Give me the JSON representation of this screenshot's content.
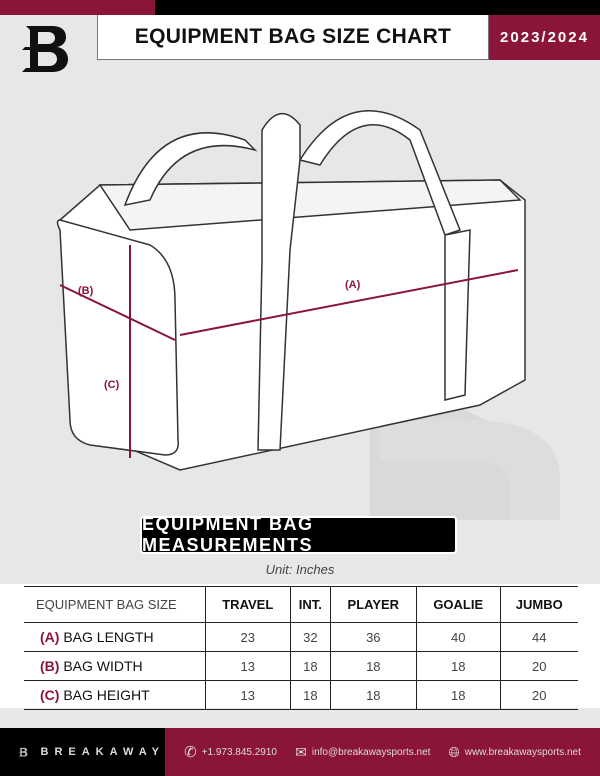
{
  "header": {
    "title": "EQUIPMENT BAG SIZE CHART",
    "season": "2023/2024"
  },
  "diagram": {
    "labels": {
      "a": "(A)",
      "b": "(B)",
      "c": "(C)"
    }
  },
  "section": {
    "title": "EQUIPMENT BAG MEASUREMENTS",
    "unit": "Unit: Inches"
  },
  "table": {
    "corner": "EQUIPMENT BAG SIZE",
    "columns": [
      "TRAVEL",
      "INT.",
      "PLAYER",
      "GOALIE",
      "JUMBO"
    ],
    "rows": [
      {
        "letter": "(A)",
        "label": "BAG LENGTH",
        "values": [
          "23",
          "32",
          "36",
          "40",
          "44"
        ]
      },
      {
        "letter": "(B)",
        "label": "BAG WIDTH",
        "values": [
          "13",
          "18",
          "18",
          "18",
          "20"
        ]
      },
      {
        "letter": "(C)",
        "label": "BAG HEIGHT",
        "values": [
          "13",
          "18",
          "18",
          "18",
          "20"
        ]
      }
    ]
  },
  "footer": {
    "brand": "BREAKAWAY",
    "phone": "+1.973.845.2910",
    "email": "info@breakawaysports.net",
    "website": "www.breakawaysports.net"
  },
  "colors": {
    "accent": "#8a1538",
    "black": "#000000",
    "background": "#e6e7e9"
  },
  "icons": [
    "logo-b",
    "phone-icon",
    "mail-icon",
    "globe-icon"
  ]
}
